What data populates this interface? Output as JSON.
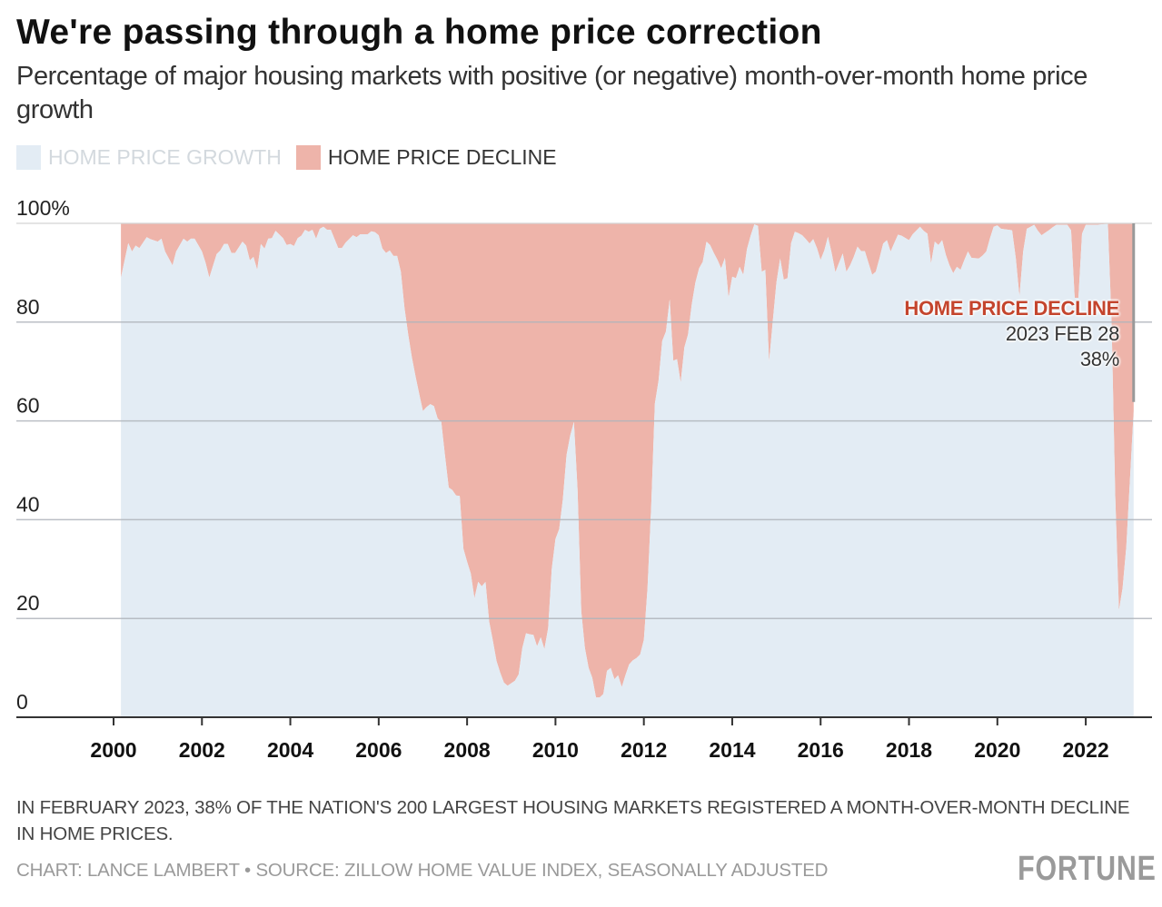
{
  "title": "We're passing through a home price correction",
  "subtitle": "Percentage of major housing markets with positive (or negative) month-over-month home price growth",
  "legend": [
    {
      "label": "HOME PRICE GROWTH",
      "color": "#E3ECF4"
    },
    {
      "label": "HOME PRICE DECLINE",
      "color": "#EEB4AA"
    }
  ],
  "annotation": {
    "title": "HOME PRICE DECLINE",
    "date": "2023 FEB 28",
    "value": "38%"
  },
  "note": "IN FEBRUARY 2023, 38% OF THE NATION'S 200 LARGEST HOUSING MARKETS REGISTERED A MONTH-OVER-MONTH DECLINE IN HOME PRICES.",
  "credit": "CHART: LANCE LAMBERT • SOURCE: ZILLOW HOME VALUE INDEX, SEASONALLY ADJUSTED",
  "logo": "FORTUNE",
  "chart_data": {
    "type": "area",
    "stacked": true,
    "ylim": [
      0,
      100
    ],
    "y_ticks": [
      "0",
      "20",
      "40",
      "60",
      "80",
      "100%"
    ],
    "y_tick_values": [
      0,
      20,
      40,
      60,
      80,
      100
    ],
    "x_ticks": [
      "2000",
      "2002",
      "2004",
      "2006",
      "2008",
      "2010",
      "2012",
      "2014",
      "2016",
      "2018",
      "2020",
      "2022"
    ],
    "grid": true,
    "legend_position": "top-left",
    "series_names": [
      "HOME PRICE GROWTH",
      "HOME PRICE DECLINE"
    ],
    "colors": {
      "growth": "#E3ECF4",
      "decline": "#EEB4AA",
      "annotation": "#C4452D"
    },
    "rows_columns": [
      "date",
      "growth_pct",
      "decline_pct"
    ],
    "rows": [
      [
        "2000-03",
        89,
        11
      ],
      [
        "2000-05",
        96,
        4
      ],
      [
        "2000-06",
        94.3,
        5.7
      ],
      [
        "2000-07",
        95.5,
        4.5
      ],
      [
        "2000-08",
        95,
        5
      ],
      [
        "2000-10",
        97.2,
        2.8
      ],
      [
        "2000-11",
        96.8,
        3.2
      ],
      [
        "2001-01",
        96.3,
        3.7
      ],
      [
        "2001-02",
        96.9,
        3.1
      ],
      [
        "2001-03",
        94.3,
        5.7
      ],
      [
        "2001-05",
        91.5,
        8.5
      ],
      [
        "2001-06",
        94.3,
        5.7
      ],
      [
        "2001-08",
        96.9,
        3.1
      ],
      [
        "2001-09",
        96.3,
        3.7
      ],
      [
        "2001-10",
        96.9,
        3.1
      ],
      [
        "2001-11",
        96.9,
        3.1
      ],
      [
        "2002-01",
        94.3,
        5.7
      ],
      [
        "2002-02",
        92,
        8
      ],
      [
        "2002-03",
        89,
        11
      ],
      [
        "2002-05",
        93.8,
        6.2
      ],
      [
        "2002-06",
        94.5,
        5.5
      ],
      [
        "2002-07",
        95.8,
        4.2
      ],
      [
        "2002-08",
        95.8,
        4.2
      ],
      [
        "2002-09",
        94,
        6
      ],
      [
        "2002-10",
        94,
        6
      ],
      [
        "2002-12",
        96.3,
        3.7
      ],
      [
        "2003-01",
        95.5,
        4.5
      ],
      [
        "2003-02",
        92.5,
        7.5
      ],
      [
        "2003-03",
        93.2,
        6.8
      ],
      [
        "2003-04",
        90.6,
        9.4
      ],
      [
        "2003-05",
        95.8,
        4.2
      ],
      [
        "2003-06",
        94.9,
        5.1
      ],
      [
        "2003-07",
        96.9,
        3.1
      ],
      [
        "2003-08",
        97,
        3
      ],
      [
        "2003-09",
        98.5,
        1.5
      ],
      [
        "2003-11",
        97,
        3
      ],
      [
        "2003-12",
        95.6,
        4.4
      ],
      [
        "2004-01",
        95.8,
        4.2
      ],
      [
        "2004-02",
        95.4,
        4.6
      ],
      [
        "2004-03",
        97,
        3
      ],
      [
        "2004-04",
        97.5,
        2.5
      ],
      [
        "2004-05",
        98.7,
        1.3
      ],
      [
        "2004-06",
        98.3,
        1.7
      ],
      [
        "2004-07",
        98.7,
        1.3
      ],
      [
        "2004-08",
        96.9,
        3.1
      ],
      [
        "2004-09",
        98.9,
        1.1
      ],
      [
        "2004-10",
        99.3,
        0.7
      ],
      [
        "2004-11",
        98.7,
        1.3
      ],
      [
        "2004-12",
        98.7,
        1.3
      ],
      [
        "2005-02",
        95,
        5
      ],
      [
        "2005-03",
        95,
        5
      ],
      [
        "2005-04",
        96.1,
        3.9
      ],
      [
        "2005-06",
        97.6,
        2.4
      ],
      [
        "2005-07",
        97.2,
        2.8
      ],
      [
        "2005-08",
        97.8,
        2.2
      ],
      [
        "2005-09",
        97.8,
        2.2
      ],
      [
        "2005-10",
        97.8,
        2.2
      ],
      [
        "2005-11",
        98.4,
        1.6
      ],
      [
        "2005-12",
        98.2,
        1.8
      ],
      [
        "2006-01",
        97.6,
        2.4
      ],
      [
        "2006-02",
        94.9,
        5.1
      ],
      [
        "2006-03",
        94,
        6
      ],
      [
        "2006-04",
        94.5,
        5.5
      ],
      [
        "2006-05",
        93.4,
        6.6
      ],
      [
        "2006-06",
        93.4,
        6.6
      ],
      [
        "2006-07",
        90.2,
        9.8
      ],
      [
        "2006-08",
        82.9,
        17.1
      ],
      [
        "2006-09",
        77.5,
        22.5
      ],
      [
        "2006-10",
        72.9,
        27.1
      ],
      [
        "2006-11",
        69,
        31
      ],
      [
        "2006-12",
        65.5,
        34.5
      ],
      [
        "2007-01",
        62,
        38
      ],
      [
        "2007-02",
        62.8,
        37.2
      ],
      [
        "2007-03",
        63.4,
        36.6
      ],
      [
        "2007-04",
        63,
        37
      ],
      [
        "2007-05",
        60.5,
        39.5
      ],
      [
        "2007-06",
        59.8,
        40.2
      ],
      [
        "2007-07",
        53,
        47
      ],
      [
        "2007-08",
        46.5,
        53.5
      ],
      [
        "2007-09",
        46,
        54
      ],
      [
        "2007-10",
        44.9,
        55.1
      ],
      [
        "2007-11",
        44.8,
        55.2
      ],
      [
        "2007-12",
        34.1,
        65.9
      ],
      [
        "2008-01",
        31.5,
        68.5
      ],
      [
        "2008-02",
        29.1,
        70.9
      ],
      [
        "2008-03",
        24.1,
        75.9
      ],
      [
        "2008-04",
        27.4,
        72.6
      ],
      [
        "2008-05",
        26.5,
        73.5
      ],
      [
        "2008-06",
        27.4,
        72.6
      ],
      [
        "2008-07",
        19.4,
        80.6
      ],
      [
        "2008-08",
        15.5,
        84.5
      ],
      [
        "2008-09",
        11.4,
        88.6
      ],
      [
        "2008-10",
        9,
        91
      ],
      [
        "2008-11",
        7,
        93
      ],
      [
        "2008-12",
        6.4,
        93.6
      ],
      [
        "2009-01",
        6.9,
        93.1
      ],
      [
        "2009-02",
        7.4,
        92.6
      ],
      [
        "2009-03",
        8.7,
        91.3
      ],
      [
        "2009-04",
        14,
        86
      ],
      [
        "2009-05",
        17,
        83
      ],
      [
        "2009-06",
        16.8,
        83.2
      ],
      [
        "2009-07",
        16.7,
        83.3
      ],
      [
        "2009-08",
        14.4,
        85.6
      ],
      [
        "2009-09",
        16.2,
        83.8
      ],
      [
        "2009-10",
        13.8,
        86.2
      ],
      [
        "2009-11",
        18,
        82
      ],
      [
        "2009-12",
        30,
        70
      ],
      [
        "2010-01",
        36.1,
        63.9
      ],
      [
        "2010-02",
        38.1,
        61.9
      ],
      [
        "2010-03",
        44.1,
        55.9
      ],
      [
        "2010-04",
        53.1,
        46.9
      ],
      [
        "2010-05",
        57,
        43
      ],
      [
        "2010-06",
        59.8,
        40.2
      ],
      [
        "2010-07",
        46.1,
        53.9
      ],
      [
        "2010-08",
        21.4,
        78.6
      ],
      [
        "2010-09",
        14,
        86
      ],
      [
        "2010-10",
        10,
        90
      ],
      [
        "2010-11",
        8,
        92
      ],
      [
        "2010-12",
        4,
        96
      ],
      [
        "2011-01",
        4,
        96
      ],
      [
        "2011-02",
        4.7,
        95.3
      ],
      [
        "2011-03",
        9.4,
        90.6
      ],
      [
        "2011-04",
        10,
        90
      ],
      [
        "2011-05",
        7.7,
        92.3
      ],
      [
        "2011-06",
        8.5,
        91.5
      ],
      [
        "2011-07",
        6.1,
        93.9
      ],
      [
        "2011-08",
        8.5,
        91.5
      ],
      [
        "2011-09",
        10.7,
        89.3
      ],
      [
        "2011-10",
        11.5,
        88.5
      ],
      [
        "2011-11",
        12,
        88
      ],
      [
        "2011-12",
        12.7,
        87.3
      ],
      [
        "2012-01",
        15.7,
        84.3
      ],
      [
        "2012-02",
        26.1,
        73.9
      ],
      [
        "2012-03",
        42.8,
        57.2
      ],
      [
        "2012-04",
        63.5,
        36.5
      ],
      [
        "2012-05",
        68.2,
        31.8
      ],
      [
        "2012-06",
        76.2,
        23.8
      ],
      [
        "2012-07",
        78.1,
        21.9
      ],
      [
        "2012-08",
        84.6,
        15.4
      ],
      [
        "2012-09",
        72.2,
        27.8
      ],
      [
        "2012-10",
        72.5,
        27.5
      ],
      [
        "2012-11",
        67.8,
        32.2
      ],
      [
        "2012-12",
        74.9,
        25.1
      ],
      [
        "2013-01",
        77.5,
        22.5
      ],
      [
        "2013-02",
        83.6,
        16.4
      ],
      [
        "2013-03",
        88,
        12
      ],
      [
        "2013-04",
        90.9,
        9.1
      ],
      [
        "2013-05",
        92.2,
        7.8
      ],
      [
        "2013-06",
        96.3,
        3.7
      ],
      [
        "2013-07",
        95.6,
        4.4
      ],
      [
        "2013-08",
        94,
        6
      ],
      [
        "2013-09",
        92.6,
        7.4
      ],
      [
        "2013-10",
        90.9,
        9.1
      ],
      [
        "2013-11",
        93,
        7
      ],
      [
        "2013-12",
        85,
        15
      ],
      [
        "2014-01",
        89.2,
        10.8
      ],
      [
        "2014-02",
        88.9,
        11.1
      ],
      [
        "2014-03",
        91.2,
        8.8
      ],
      [
        "2014-04",
        89.6,
        10.4
      ],
      [
        "2014-05",
        94.8,
        5.2
      ],
      [
        "2014-06",
        97.5,
        2.5
      ],
      [
        "2014-07",
        99.8,
        0.2
      ],
      [
        "2014-08",
        99.5,
        0.5
      ],
      [
        "2014-09",
        90.2,
        9.8
      ],
      [
        "2014-10",
        90.6,
        9.4
      ],
      [
        "2014-11",
        71.9,
        28.1
      ],
      [
        "2014-12",
        80,
        20
      ],
      [
        "2015-01",
        88,
        12
      ],
      [
        "2015-02",
        92.9,
        7.1
      ],
      [
        "2015-03",
        88.6,
        11.4
      ],
      [
        "2015-04",
        88.9,
        11.1
      ],
      [
        "2015-05",
        96,
        4
      ],
      [
        "2015-06",
        98.3,
        1.7
      ],
      [
        "2015-07",
        98,
        2
      ],
      [
        "2015-08",
        97.6,
        2.4
      ],
      [
        "2015-09",
        96.8,
        3.2
      ],
      [
        "2015-10",
        95.9,
        4.1
      ],
      [
        "2015-11",
        96.8,
        3.2
      ],
      [
        "2015-12",
        95,
        5
      ],
      [
        "2016-01",
        92.6,
        7.4
      ],
      [
        "2016-02",
        94.5,
        5.5
      ],
      [
        "2016-03",
        97.3,
        2.7
      ],
      [
        "2016-04",
        94,
        6
      ],
      [
        "2016-05",
        90.1,
        9.9
      ],
      [
        "2016-06",
        92,
        8
      ],
      [
        "2016-07",
        93.9,
        6.1
      ],
      [
        "2016-08",
        90.2,
        9.8
      ],
      [
        "2016-09",
        91.5,
        8.5
      ],
      [
        "2016-10",
        93.2,
        6.8
      ],
      [
        "2016-11",
        95.3,
        4.7
      ],
      [
        "2016-12",
        94.4,
        5.6
      ],
      [
        "2017-01",
        94.4,
        5.6
      ],
      [
        "2017-02",
        92,
        8
      ],
      [
        "2017-03",
        89.6,
        10.4
      ],
      [
        "2017-04",
        90.2,
        9.8
      ],
      [
        "2017-05",
        93,
        7
      ],
      [
        "2017-06",
        95.9,
        4.1
      ],
      [
        "2017-07",
        96.6,
        3.4
      ],
      [
        "2017-08",
        94.3,
        5.7
      ],
      [
        "2017-09",
        96,
        4
      ],
      [
        "2017-10",
        97.7,
        2.3
      ],
      [
        "2017-11",
        97.5,
        2.5
      ],
      [
        "2018-01",
        96.6,
        3.4
      ],
      [
        "2018-02",
        97.8,
        2.2
      ],
      [
        "2018-04",
        99.3,
        0.7
      ],
      [
        "2018-05",
        98.5,
        1.5
      ],
      [
        "2018-06",
        97.9,
        2.1
      ],
      [
        "2018-07",
        91.9,
        8.1
      ],
      [
        "2018-08",
        96.3,
        3.7
      ],
      [
        "2018-09",
        95.6,
        4.4
      ],
      [
        "2018-10",
        96.6,
        3.4
      ],
      [
        "2018-11",
        93.6,
        6.4
      ],
      [
        "2018-12",
        91.5,
        8.5
      ],
      [
        "2019-01",
        89.9,
        10.1
      ],
      [
        "2019-02",
        91.2,
        8.8
      ],
      [
        "2019-03",
        90.6,
        9.4
      ],
      [
        "2019-04",
        92.5,
        7.5
      ],
      [
        "2019-05",
        94.3,
        5.7
      ],
      [
        "2019-06",
        93,
        7
      ],
      [
        "2019-08",
        92.9,
        7.1
      ],
      [
        "2019-09",
        93.5,
        6.5
      ],
      [
        "2019-10",
        94.3,
        5.7
      ],
      [
        "2019-11",
        97,
        3
      ],
      [
        "2019-12",
        99.3,
        0.7
      ],
      [
        "2020-01",
        99.6,
        0.4
      ],
      [
        "2020-02",
        98.9,
        1.1
      ],
      [
        "2020-03",
        98.8,
        1.2
      ],
      [
        "2020-05",
        98.6,
        1.4
      ],
      [
        "2020-06",
        92.9,
        7.1
      ],
      [
        "2020-07",
        85.2,
        14.8
      ],
      [
        "2020-08",
        94.3,
        5.7
      ],
      [
        "2020-09",
        98.9,
        1.1
      ],
      [
        "2020-11",
        99.7,
        0.3
      ],
      [
        "2020-12",
        98.5,
        1.5
      ],
      [
        "2021-01",
        97.6,
        2.4
      ],
      [
        "2021-03",
        98.6,
        1.4
      ],
      [
        "2021-04",
        99.2,
        0.8
      ],
      [
        "2021-05",
        99.7,
        0.3
      ],
      [
        "2021-08",
        99.7,
        0.3
      ],
      [
        "2021-09",
        98.6,
        1.4
      ],
      [
        "2021-10",
        84.9,
        15.1
      ],
      [
        "2021-11",
        84.9,
        15.1
      ],
      [
        "2021-12",
        97.9,
        2.1
      ],
      [
        "2022-01",
        99.7,
        0.3
      ],
      [
        "2022-04",
        99.7,
        0.3
      ],
      [
        "2022-07",
        99.9,
        0.1
      ],
      [
        "2022-08",
        80,
        20
      ],
      [
        "2022-09",
        45,
        55
      ],
      [
        "2022-10",
        21.7,
        78.3
      ],
      [
        "2022-11",
        26.1,
        73.9
      ],
      [
        "2022-12",
        34.5,
        65.5
      ],
      [
        "2023-01",
        48,
        52
      ],
      [
        "2023-02",
        62,
        38
      ]
    ]
  }
}
